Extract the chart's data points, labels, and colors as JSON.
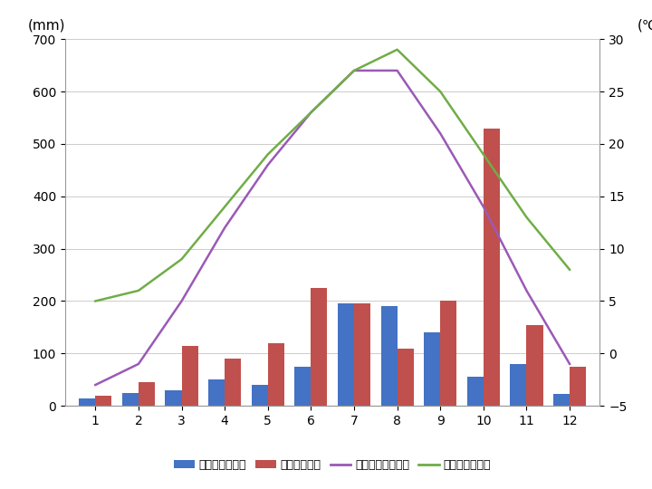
{
  "months": [
    1,
    2,
    3,
    4,
    5,
    6,
    7,
    8,
    9,
    10,
    11,
    12
  ],
  "seoul_precip": [
    15,
    25,
    30,
    50,
    40,
    75,
    195,
    190,
    140,
    55,
    80,
    22
  ],
  "tokyo_precip": [
    20,
    45,
    115,
    90,
    120,
    225,
    195,
    110,
    200,
    530,
    155,
    75
  ],
  "seoul_temp": [
    -3,
    -1,
    5,
    12,
    18,
    23,
    27,
    27,
    21,
    14,
    6,
    -1
  ],
  "tokyo_temp": [
    5,
    6,
    9,
    14,
    19,
    23,
    27,
    29,
    25,
    19,
    13,
    8
  ],
  "seoul_precip_color": "#4472C4",
  "tokyo_precip_color": "#C0504D",
  "seoul_temp_color": "#9B59B6",
  "tokyo_temp_color": "#70AD47",
  "ylim_left": [
    0,
    700
  ],
  "ylim_right": [
    -5,
    30
  ],
  "yticks_left": [
    0,
    100,
    200,
    300,
    400,
    500,
    600,
    700
  ],
  "yticks_right": [
    -5,
    0,
    5,
    10,
    15,
    20,
    25,
    30
  ],
  "ylabel_left": "(mm)",
  "ylabel_right": "(℃)",
  "legend_labels": [
    "ソウルの降水量",
    "東京の降水量",
    "ソウルの平均気温",
    "東京の平均気温"
  ],
  "bar_width": 0.38,
  "background_color": "#ffffff",
  "grid_color": "#cccccc"
}
